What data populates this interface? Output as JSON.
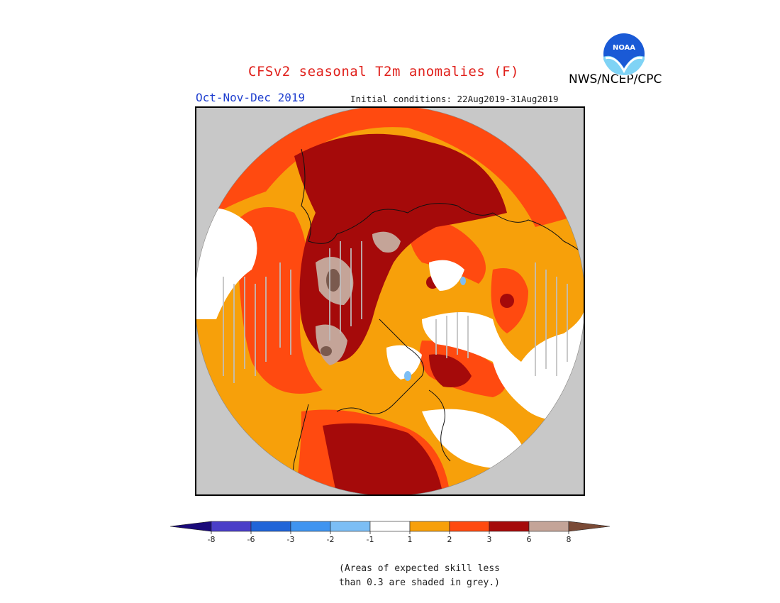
{
  "header": {
    "title": "CFSv2 seasonal T2m anomalies (F)",
    "organization": "NWS/NCEP/CPC",
    "logo_text": "NOAA",
    "season": "Oct-Nov-Dec 2019",
    "initial_conditions": "Initial conditions: 22Aug2019-31Aug2019"
  },
  "map": {
    "projection": "north-polar-stereographic",
    "background_color": "#c8c8c8",
    "skill_mask_color": "#c0c0c0"
  },
  "legend": {
    "ticks": [
      "-8",
      "-6",
      "-3",
      "-2",
      "-1",
      "1",
      "2",
      "3",
      "6",
      "8"
    ],
    "colors": [
      "#1a0a7a",
      "#4a3ec8",
      "#1f64d8",
      "#3f94f0",
      "#7cbef5",
      "#ffffff",
      "#f7a00a",
      "#ff4a10",
      "#a50a0a",
      "#c4a498",
      "#7a4a36"
    ],
    "note_line1": "(Areas of expected skill less",
    "note_line2": "than 0.3 are shaded in grey.)"
  }
}
